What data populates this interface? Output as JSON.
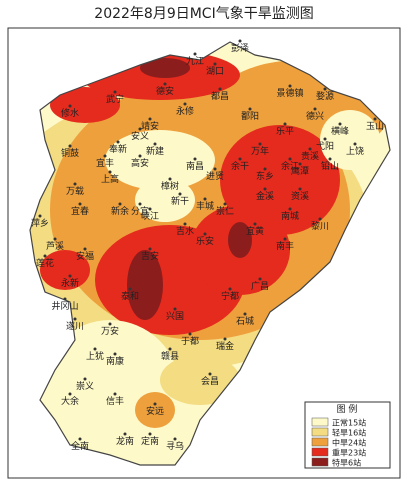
{
  "title": "2022年8月9日MCI气象干旱监测图",
  "labels": [
    "彭泽",
    "湖口",
    "都昌",
    "武宁",
    "修水",
    "永修",
    "德安",
    "九江",
    "鄱阳",
    "景德镇",
    "婺源",
    "乐平",
    "万年",
    "余干",
    "进贤",
    "南昌",
    "新建",
    "安义",
    "靖安",
    "奉新",
    "高安",
    "宜丰",
    "铜鼓",
    "万载",
    "上高",
    "宜春",
    "萍乡",
    "芦溪",
    "莲花",
    "安福",
    "永新",
    "井冈山",
    "遂川",
    "万安",
    "泰和",
    "吉安",
    "吉水",
    "峡江",
    "新干",
    "樟树",
    "丰城",
    "新余",
    "分宜",
    "崇仁",
    "乐安",
    "宜黄",
    "南城",
    "南丰",
    "广昌",
    "黎川",
    "资溪",
    "金溪",
    "东乡",
    "余江",
    "鹰潭",
    "贵溪",
    "弋阳",
    "横峰",
    "铅山",
    "上饶",
    "玉山",
    "德兴",
    "兴国",
    "宁都",
    "石城",
    "瑞金",
    "于都",
    "会昌",
    "赣县",
    "南康",
    "上犹",
    "崇义",
    "大余",
    "信丰",
    "安远",
    "寻乌",
    "全南",
    "龙南",
    "定南"
  ],
  "legend": {
    "title": "图 例",
    "items": [
      "正常15站",
      "轻旱16站",
      "中旱24站",
      "重旱23站",
      "特旱6站"
    ],
    "colors": [
      "#fdf9c8",
      "#f3dc82",
      "#eea03c",
      "#e52a1e",
      "#8c1d1d"
    ]
  }
}
